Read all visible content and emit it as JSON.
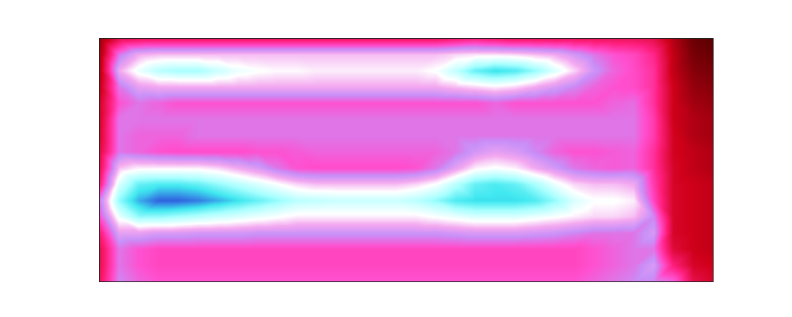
{
  "chart_data": {
    "type": "heatmap",
    "tick_labels": false,
    "cells": [
      [
        15,
        30,
        32,
        32,
        32,
        32,
        32,
        32,
        32,
        32,
        32,
        32,
        32,
        32,
        32,
        32,
        32,
        32,
        34,
        36,
        34,
        32,
        32,
        32,
        32,
        32,
        32,
        32,
        30,
        20,
        10,
        8
      ],
      [
        18,
        50,
        60,
        62,
        62,
        62,
        62,
        62,
        62,
        62,
        62,
        62,
        62,
        62,
        62,
        62,
        62,
        62,
        64,
        65,
        65,
        64,
        62,
        60,
        55,
        50,
        46,
        44,
        38,
        22,
        12,
        10
      ],
      [
        20,
        60,
        70,
        76,
        78,
        78,
        74,
        70,
        68,
        67,
        67,
        66,
        66,
        66,
        66,
        66,
        66,
        68,
        75,
        84,
        88,
        86,
        80,
        72,
        64,
        54,
        48,
        45,
        40,
        22,
        14,
        12
      ],
      [
        22,
        50,
        58,
        60,
        60,
        60,
        60,
        60,
        60,
        60,
        60,
        60,
        60,
        60,
        60,
        60,
        60,
        60,
        62,
        64,
        66,
        64,
        60,
        56,
        52,
        48,
        46,
        45,
        40,
        24,
        16,
        14
      ],
      [
        25,
        46,
        50,
        48,
        46,
        46,
        46,
        46,
        46,
        46,
        46,
        46,
        46,
        46,
        46,
        46,
        46,
        46,
        46,
        46,
        48,
        46,
        46,
        46,
        46,
        46,
        48,
        49,
        40,
        24,
        18,
        16
      ],
      [
        25,
        50,
        50,
        50,
        50,
        50,
        50,
        50,
        50,
        50,
        50,
        50,
        50,
        50,
        50,
        50,
        50,
        50,
        50,
        50,
        50,
        50,
        50,
        50,
        50,
        50,
        50,
        50,
        42,
        24,
        20,
        18
      ],
      [
        26,
        50,
        48,
        48,
        48,
        50,
        50,
        50,
        50,
        50,
        50,
        50,
        50,
        50,
        50,
        50,
        50,
        50,
        50,
        50,
        50,
        50,
        50,
        50,
        50,
        50,
        50,
        50,
        42,
        25,
        20,
        18
      ],
      [
        28,
        50,
        48,
        46,
        45,
        45,
        45,
        45,
        46,
        46,
        47,
        48,
        48,
        48,
        48,
        48,
        48,
        48,
        50,
        55,
        58,
        56,
        52,
        48,
        46,
        46,
        47,
        48,
        40,
        25,
        22,
        20
      ],
      [
        30,
        62,
        66,
        66,
        66,
        66,
        64,
        60,
        56,
        50,
        46,
        45,
        45,
        45,
        45,
        45,
        46,
        50,
        58,
        66,
        68,
        66,
        60,
        55,
        50,
        48,
        47,
        48,
        40,
        26,
        22,
        20
      ],
      [
        35,
        72,
        84,
        86,
        86,
        84,
        80,
        76,
        72,
        68,
        64,
        62,
        62,
        62,
        62,
        62,
        64,
        68,
        76,
        84,
        86,
        84,
        78,
        70,
        64,
        62,
        62,
        60,
        42,
        26,
        24,
        22
      ],
      [
        50,
        80,
        92,
        98,
        98,
        96,
        92,
        88,
        84,
        80,
        76,
        75,
        74,
        74,
        74,
        74,
        76,
        80,
        86,
        88,
        88,
        88,
        86,
        80,
        72,
        68,
        68,
        66,
        44,
        26,
        24,
        22
      ],
      [
        45,
        70,
        80,
        80,
        78,
        76,
        74,
        72,
        70,
        68,
        66,
        66,
        66,
        66,
        66,
        66,
        66,
        68,
        70,
        72,
        72,
        72,
        70,
        68,
        66,
        64,
        64,
        62,
        52,
        26,
        24,
        22
      ],
      [
        35,
        58,
        58,
        56,
        56,
        55,
        55,
        55,
        54,
        54,
        54,
        54,
        54,
        54,
        54,
        54,
        54,
        54,
        55,
        56,
        56,
        56,
        55,
        54,
        52,
        50,
        50,
        50,
        56,
        26,
        24,
        22
      ],
      [
        30,
        50,
        46,
        44,
        44,
        44,
        44,
        44,
        44,
        44,
        44,
        44,
        44,
        44,
        44,
        44,
        44,
        44,
        44,
        44,
        44,
        44,
        44,
        44,
        44,
        46,
        48,
        50,
        50,
        28,
        24,
        22
      ],
      [
        30,
        50,
        46,
        44,
        44,
        44,
        44,
        44,
        44,
        44,
        44,
        44,
        44,
        44,
        44,
        44,
        44,
        44,
        44,
        44,
        44,
        44,
        44,
        44,
        44,
        46,
        48,
        50,
        56,
        36,
        26,
        24
      ],
      [
        32,
        52,
        48,
        46,
        46,
        46,
        46,
        46,
        46,
        46,
        46,
        46,
        46,
        46,
        46,
        46,
        46,
        46,
        46,
        46,
        46,
        46,
        46,
        46,
        46,
        48,
        50,
        52,
        52,
        48,
        30,
        26
      ]
    ]
  }
}
